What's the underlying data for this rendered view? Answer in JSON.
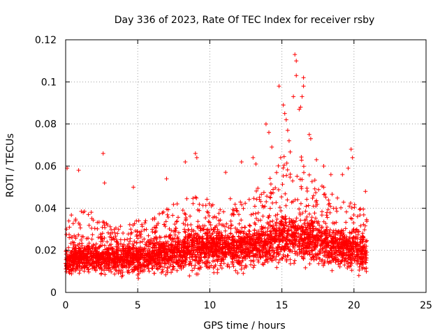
{
  "chart_data": {
    "type": "scatter",
    "title": "Day 336 of 2023, Rate Of TEC Index for receiver rsby",
    "xlabel": "GPS time / hours",
    "ylabel": "ROTI / TECUs",
    "xlim": [
      0,
      25
    ],
    "ylim": [
      0,
      0.12
    ],
    "xticks": [
      0,
      5,
      10,
      15,
      20,
      25
    ],
    "yticks": [
      0,
      0.02,
      0.04,
      0.06,
      0.08,
      0.1,
      0.12
    ],
    "xtick_labels": [
      "0",
      "5",
      "10",
      "15",
      "20",
      "25"
    ],
    "ytick_labels": [
      "0",
      "0.02",
      "0.04",
      "0.06",
      "0.08",
      "0.1",
      "0.12"
    ],
    "grid": true,
    "legend": "none",
    "marker": "plus",
    "color": "#ff0000",
    "x_range_of_data": [
      0,
      20.9
    ],
    "envelope_hours": [
      0,
      1,
      2,
      3,
      4,
      5,
      6,
      7,
      8,
      9,
      10,
      11,
      12,
      13,
      14,
      15,
      16,
      17,
      18,
      19,
      20,
      20.9
    ],
    "envelope_low": [
      0.006,
      0.006,
      0.006,
      0.006,
      0.005,
      0.005,
      0.006,
      0.006,
      0.006,
      0.006,
      0.007,
      0.007,
      0.007,
      0.008,
      0.008,
      0.009,
      0.009,
      0.008,
      0.008,
      0.007,
      0.006,
      0.005
    ],
    "envelope_mid": [
      0.015,
      0.016,
      0.016,
      0.016,
      0.016,
      0.016,
      0.017,
      0.018,
      0.019,
      0.02,
      0.021,
      0.021,
      0.021,
      0.022,
      0.023,
      0.025,
      0.026,
      0.025,
      0.023,
      0.021,
      0.02,
      0.019
    ],
    "envelope_high": [
      0.035,
      0.04,
      0.038,
      0.032,
      0.032,
      0.035,
      0.035,
      0.04,
      0.045,
      0.048,
      0.045,
      0.045,
      0.045,
      0.048,
      0.055,
      0.065,
      0.07,
      0.055,
      0.05,
      0.045,
      0.042,
      0.04
    ],
    "notable_points": [
      {
        "x": 0.1,
        "y": 0.059
      },
      {
        "x": 0.9,
        "y": 0.058
      },
      {
        "x": 2.6,
        "y": 0.066
      },
      {
        "x": 2.7,
        "y": 0.052
      },
      {
        "x": 4.7,
        "y": 0.05
      },
      {
        "x": 7.0,
        "y": 0.054
      },
      {
        "x": 8.3,
        "y": 0.062
      },
      {
        "x": 9.0,
        "y": 0.066
      },
      {
        "x": 9.1,
        "y": 0.064
      },
      {
        "x": 11.1,
        "y": 0.057
      },
      {
        "x": 12.2,
        "y": 0.062
      },
      {
        "x": 13.0,
        "y": 0.064
      },
      {
        "x": 13.2,
        "y": 0.061
      },
      {
        "x": 13.9,
        "y": 0.08
      },
      {
        "x": 14.1,
        "y": 0.076
      },
      {
        "x": 14.3,
        "y": 0.069
      },
      {
        "x": 14.8,
        "y": 0.098
      },
      {
        "x": 15.1,
        "y": 0.089
      },
      {
        "x": 15.2,
        "y": 0.085
      },
      {
        "x": 15.3,
        "y": 0.082
      },
      {
        "x": 15.4,
        "y": 0.077
      },
      {
        "x": 15.5,
        "y": 0.072
      },
      {
        "x": 15.9,
        "y": 0.113
      },
      {
        "x": 16.0,
        "y": 0.11
      },
      {
        "x": 16.0,
        "y": 0.103
      },
      {
        "x": 15.8,
        "y": 0.093
      },
      {
        "x": 16.5,
        "y": 0.102
      },
      {
        "x": 16.5,
        "y": 0.098
      },
      {
        "x": 16.4,
        "y": 0.093
      },
      {
        "x": 16.3,
        "y": 0.088
      },
      {
        "x": 16.2,
        "y": 0.087
      },
      {
        "x": 16.9,
        "y": 0.075
      },
      {
        "x": 17.0,
        "y": 0.073
      },
      {
        "x": 17.4,
        "y": 0.063
      },
      {
        "x": 17.9,
        "y": 0.06
      },
      {
        "x": 18.4,
        "y": 0.056
      },
      {
        "x": 19.2,
        "y": 0.056
      },
      {
        "x": 19.6,
        "y": 0.059
      },
      {
        "x": 19.8,
        "y": 0.068
      },
      {
        "x": 19.9,
        "y": 0.064
      },
      {
        "x": 20.8,
        "y": 0.048
      }
    ]
  }
}
